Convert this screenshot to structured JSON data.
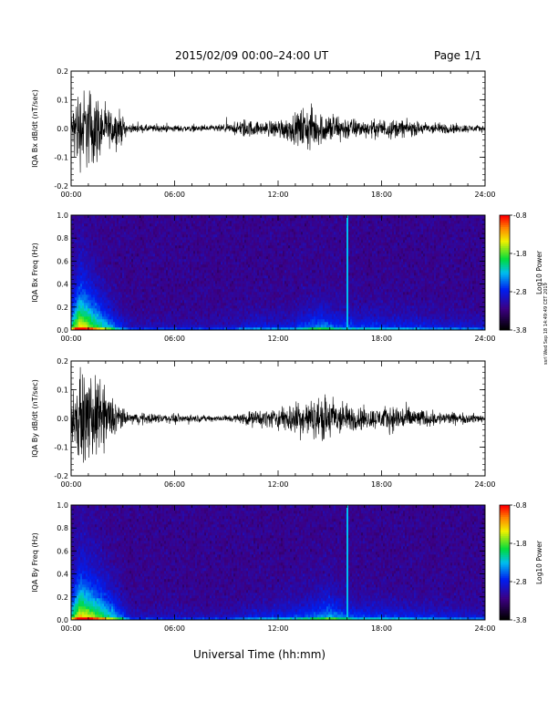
{
  "header": {
    "title": "2015/02/09  00:00–24:00 UT",
    "page": "Page 1/1"
  },
  "footer": {
    "xaxis_title": "Universal Time (hh:mm)",
    "side_stamp": "ssrl Wed Sep 18 14:49:49 CET 2019"
  },
  "chart_data": [
    {
      "type": "line",
      "ylabel": "IQA Bx dB/dt (nT/sec)",
      "x_ticks": [
        "00:00",
        "06:00",
        "12:00",
        "18:00",
        "24:00"
      ],
      "y_ticks": [
        "-0.2",
        "-0.1",
        "0.0",
        "0.1",
        "0.2"
      ],
      "ylim": [
        -0.2,
        0.2
      ],
      "xlim_hours": [
        0,
        24
      ],
      "series_color": "#000000",
      "envelope": [
        {
          "x": 0.0,
          "amp": 0.06
        },
        {
          "x": 0.3,
          "amp": 0.2
        },
        {
          "x": 0.8,
          "amp": 0.2
        },
        {
          "x": 1.3,
          "amp": 0.2
        },
        {
          "x": 2.0,
          "amp": 0.1
        },
        {
          "x": 2.8,
          "amp": 0.09
        },
        {
          "x": 3.3,
          "amp": 0.02
        },
        {
          "x": 8.0,
          "amp": 0.015
        },
        {
          "x": 9.5,
          "amp": 0.025
        },
        {
          "x": 10.0,
          "amp": 0.05
        },
        {
          "x": 11.0,
          "amp": 0.03
        },
        {
          "x": 12.0,
          "amp": 0.05
        },
        {
          "x": 13.0,
          "amp": 0.07
        },
        {
          "x": 13.6,
          "amp": 0.12
        },
        {
          "x": 14.5,
          "amp": 0.08
        },
        {
          "x": 15.0,
          "amp": 0.08
        },
        {
          "x": 16.0,
          "amp": 0.06
        },
        {
          "x": 17.0,
          "amp": 0.04
        },
        {
          "x": 18.5,
          "amp": 0.05
        },
        {
          "x": 20.0,
          "amp": 0.035
        },
        {
          "x": 22.0,
          "amp": 0.025
        },
        {
          "x": 24.0,
          "amp": 0.015
        }
      ]
    },
    {
      "type": "heatmap",
      "ylabel": "IQA Bx Freq (Hz)",
      "x_ticks": [
        "00:00",
        "06:00",
        "12:00",
        "18:00",
        "24:00"
      ],
      "y_ticks": [
        "0.0",
        "0.2",
        "0.4",
        "0.6",
        "0.8",
        "1.0"
      ],
      "ylim": [
        0.0,
        1.0
      ],
      "colorbar": {
        "label": "Log10 Power",
        "ticks": [
          "-0.8",
          "-1.8",
          "-2.8",
          "-3.8"
        ],
        "range": [
          -3.8,
          -0.8
        ]
      },
      "activity": [
        {
          "x": 0.0,
          "a": 0.6
        },
        {
          "x": 0.5,
          "a": 1.0
        },
        {
          "x": 1.2,
          "a": 0.8
        },
        {
          "x": 2.5,
          "a": 0.4
        },
        {
          "x": 3.5,
          "a": 0.15
        },
        {
          "x": 9.0,
          "a": 0.15
        },
        {
          "x": 10.5,
          "a": 0.25
        },
        {
          "x": 12.5,
          "a": 0.25
        },
        {
          "x": 13.5,
          "a": 0.35
        },
        {
          "x": 14.5,
          "a": 0.45
        },
        {
          "x": 15.5,
          "a": 0.35
        },
        {
          "x": 18.0,
          "a": 0.3
        },
        {
          "x": 21.0,
          "a": 0.25
        },
        {
          "x": 24.0,
          "a": 0.2
        }
      ],
      "spike_hours": [
        16.0
      ]
    },
    {
      "type": "line",
      "ylabel": "IQA By dB/dt (nT/sec)",
      "x_ticks": [
        "00:00",
        "06:00",
        "12:00",
        "18:00",
        "24:00"
      ],
      "y_ticks": [
        "-0.2",
        "-0.1",
        "0.0",
        "0.1",
        "0.2"
      ],
      "ylim": [
        -0.2,
        0.2
      ],
      "xlim_hours": [
        0,
        24
      ],
      "series_color": "#000000",
      "envelope": [
        {
          "x": 0.0,
          "amp": 0.08
        },
        {
          "x": 0.3,
          "amp": 0.2
        },
        {
          "x": 1.5,
          "amp": 0.2
        },
        {
          "x": 2.5,
          "amp": 0.1
        },
        {
          "x": 3.2,
          "amp": 0.03
        },
        {
          "x": 8.0,
          "amp": 0.015
        },
        {
          "x": 9.5,
          "amp": 0.02
        },
        {
          "x": 10.5,
          "amp": 0.04
        },
        {
          "x": 12.0,
          "amp": 0.05
        },
        {
          "x": 13.0,
          "amp": 0.09
        },
        {
          "x": 14.0,
          "amp": 0.09
        },
        {
          "x": 15.0,
          "amp": 0.12
        },
        {
          "x": 16.0,
          "amp": 0.07
        },
        {
          "x": 17.5,
          "amp": 0.05
        },
        {
          "x": 19.0,
          "amp": 0.07
        },
        {
          "x": 20.5,
          "amp": 0.04
        },
        {
          "x": 22.0,
          "amp": 0.03
        },
        {
          "x": 24.0,
          "amp": 0.02
        }
      ]
    },
    {
      "type": "heatmap",
      "ylabel": "IQA By Freq (Hz)",
      "x_ticks": [
        "00:00",
        "06:00",
        "12:00",
        "18:00",
        "24:00"
      ],
      "y_ticks": [
        "0.0",
        "0.2",
        "0.4",
        "0.6",
        "0.8",
        "1.0"
      ],
      "ylim": [
        0.0,
        1.0
      ],
      "colorbar": {
        "label": "Log10 Power",
        "ticks": [
          "-0.8",
          "-1.8",
          "-2.8",
          "-3.8"
        ],
        "range": [
          -3.8,
          -0.8
        ]
      },
      "activity": [
        {
          "x": 0.0,
          "a": 0.6
        },
        {
          "x": 0.5,
          "a": 1.0
        },
        {
          "x": 1.5,
          "a": 0.8
        },
        {
          "x": 2.8,
          "a": 0.45
        },
        {
          "x": 3.5,
          "a": 0.15
        },
        {
          "x": 9.0,
          "a": 0.15
        },
        {
          "x": 10.5,
          "a": 0.25
        },
        {
          "x": 12.5,
          "a": 0.3
        },
        {
          "x": 14.0,
          "a": 0.4
        },
        {
          "x": 15.0,
          "a": 0.5
        },
        {
          "x": 16.0,
          "a": 0.35
        },
        {
          "x": 18.5,
          "a": 0.3
        },
        {
          "x": 21.0,
          "a": 0.25
        },
        {
          "x": 24.0,
          "a": 0.2
        }
      ],
      "spike_hours": [
        16.0
      ]
    }
  ]
}
